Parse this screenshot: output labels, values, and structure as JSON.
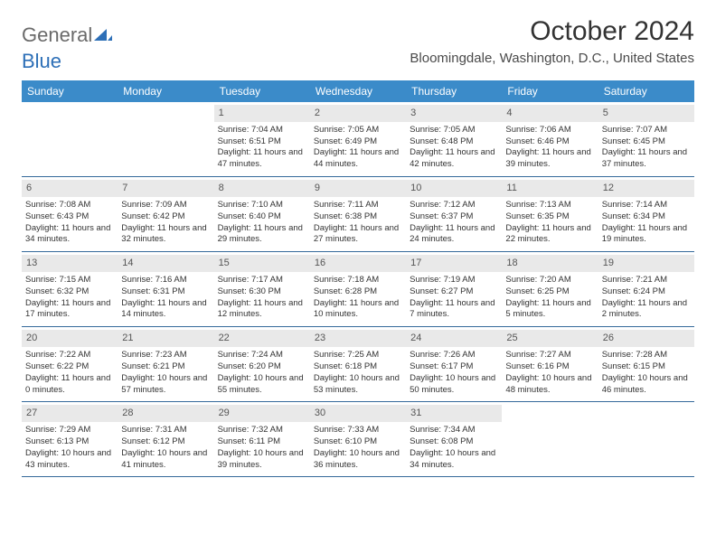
{
  "logo": {
    "word1": "General",
    "word2": "Blue"
  },
  "title": "October 2024",
  "location": "Bloomingdale, Washington, D.C., United States",
  "colors": {
    "header_bg": "#3b8bc9",
    "header_text": "#ffffff",
    "row_border": "#34699a",
    "daynum_bg": "#e9e9e9",
    "daynum_text": "#555555",
    "body_text": "#333333",
    "logo_gray": "#6a6a6a",
    "logo_blue": "#2d6fb7"
  },
  "day_names": [
    "Sunday",
    "Monday",
    "Tuesday",
    "Wednesday",
    "Thursday",
    "Friday",
    "Saturday"
  ],
  "weeks": [
    [
      {
        "day": "",
        "sunrise": "",
        "sunset": "",
        "daylight": ""
      },
      {
        "day": "",
        "sunrise": "",
        "sunset": "",
        "daylight": ""
      },
      {
        "day": "1",
        "sunrise": "Sunrise: 7:04 AM",
        "sunset": "Sunset: 6:51 PM",
        "daylight": "Daylight: 11 hours and 47 minutes."
      },
      {
        "day": "2",
        "sunrise": "Sunrise: 7:05 AM",
        "sunset": "Sunset: 6:49 PM",
        "daylight": "Daylight: 11 hours and 44 minutes."
      },
      {
        "day": "3",
        "sunrise": "Sunrise: 7:05 AM",
        "sunset": "Sunset: 6:48 PM",
        "daylight": "Daylight: 11 hours and 42 minutes."
      },
      {
        "day": "4",
        "sunrise": "Sunrise: 7:06 AM",
        "sunset": "Sunset: 6:46 PM",
        "daylight": "Daylight: 11 hours and 39 minutes."
      },
      {
        "day": "5",
        "sunrise": "Sunrise: 7:07 AM",
        "sunset": "Sunset: 6:45 PM",
        "daylight": "Daylight: 11 hours and 37 minutes."
      }
    ],
    [
      {
        "day": "6",
        "sunrise": "Sunrise: 7:08 AM",
        "sunset": "Sunset: 6:43 PM",
        "daylight": "Daylight: 11 hours and 34 minutes."
      },
      {
        "day": "7",
        "sunrise": "Sunrise: 7:09 AM",
        "sunset": "Sunset: 6:42 PM",
        "daylight": "Daylight: 11 hours and 32 minutes."
      },
      {
        "day": "8",
        "sunrise": "Sunrise: 7:10 AM",
        "sunset": "Sunset: 6:40 PM",
        "daylight": "Daylight: 11 hours and 29 minutes."
      },
      {
        "day": "9",
        "sunrise": "Sunrise: 7:11 AM",
        "sunset": "Sunset: 6:38 PM",
        "daylight": "Daylight: 11 hours and 27 minutes."
      },
      {
        "day": "10",
        "sunrise": "Sunrise: 7:12 AM",
        "sunset": "Sunset: 6:37 PM",
        "daylight": "Daylight: 11 hours and 24 minutes."
      },
      {
        "day": "11",
        "sunrise": "Sunrise: 7:13 AM",
        "sunset": "Sunset: 6:35 PM",
        "daylight": "Daylight: 11 hours and 22 minutes."
      },
      {
        "day": "12",
        "sunrise": "Sunrise: 7:14 AM",
        "sunset": "Sunset: 6:34 PM",
        "daylight": "Daylight: 11 hours and 19 minutes."
      }
    ],
    [
      {
        "day": "13",
        "sunrise": "Sunrise: 7:15 AM",
        "sunset": "Sunset: 6:32 PM",
        "daylight": "Daylight: 11 hours and 17 minutes."
      },
      {
        "day": "14",
        "sunrise": "Sunrise: 7:16 AM",
        "sunset": "Sunset: 6:31 PM",
        "daylight": "Daylight: 11 hours and 14 minutes."
      },
      {
        "day": "15",
        "sunrise": "Sunrise: 7:17 AM",
        "sunset": "Sunset: 6:30 PM",
        "daylight": "Daylight: 11 hours and 12 minutes."
      },
      {
        "day": "16",
        "sunrise": "Sunrise: 7:18 AM",
        "sunset": "Sunset: 6:28 PM",
        "daylight": "Daylight: 11 hours and 10 minutes."
      },
      {
        "day": "17",
        "sunrise": "Sunrise: 7:19 AM",
        "sunset": "Sunset: 6:27 PM",
        "daylight": "Daylight: 11 hours and 7 minutes."
      },
      {
        "day": "18",
        "sunrise": "Sunrise: 7:20 AM",
        "sunset": "Sunset: 6:25 PM",
        "daylight": "Daylight: 11 hours and 5 minutes."
      },
      {
        "day": "19",
        "sunrise": "Sunrise: 7:21 AM",
        "sunset": "Sunset: 6:24 PM",
        "daylight": "Daylight: 11 hours and 2 minutes."
      }
    ],
    [
      {
        "day": "20",
        "sunrise": "Sunrise: 7:22 AM",
        "sunset": "Sunset: 6:22 PM",
        "daylight": "Daylight: 11 hours and 0 minutes."
      },
      {
        "day": "21",
        "sunrise": "Sunrise: 7:23 AM",
        "sunset": "Sunset: 6:21 PM",
        "daylight": "Daylight: 10 hours and 57 minutes."
      },
      {
        "day": "22",
        "sunrise": "Sunrise: 7:24 AM",
        "sunset": "Sunset: 6:20 PM",
        "daylight": "Daylight: 10 hours and 55 minutes."
      },
      {
        "day": "23",
        "sunrise": "Sunrise: 7:25 AM",
        "sunset": "Sunset: 6:18 PM",
        "daylight": "Daylight: 10 hours and 53 minutes."
      },
      {
        "day": "24",
        "sunrise": "Sunrise: 7:26 AM",
        "sunset": "Sunset: 6:17 PM",
        "daylight": "Daylight: 10 hours and 50 minutes."
      },
      {
        "day": "25",
        "sunrise": "Sunrise: 7:27 AM",
        "sunset": "Sunset: 6:16 PM",
        "daylight": "Daylight: 10 hours and 48 minutes."
      },
      {
        "day": "26",
        "sunrise": "Sunrise: 7:28 AM",
        "sunset": "Sunset: 6:15 PM",
        "daylight": "Daylight: 10 hours and 46 minutes."
      }
    ],
    [
      {
        "day": "27",
        "sunrise": "Sunrise: 7:29 AM",
        "sunset": "Sunset: 6:13 PM",
        "daylight": "Daylight: 10 hours and 43 minutes."
      },
      {
        "day": "28",
        "sunrise": "Sunrise: 7:31 AM",
        "sunset": "Sunset: 6:12 PM",
        "daylight": "Daylight: 10 hours and 41 minutes."
      },
      {
        "day": "29",
        "sunrise": "Sunrise: 7:32 AM",
        "sunset": "Sunset: 6:11 PM",
        "daylight": "Daylight: 10 hours and 39 minutes."
      },
      {
        "day": "30",
        "sunrise": "Sunrise: 7:33 AM",
        "sunset": "Sunset: 6:10 PM",
        "daylight": "Daylight: 10 hours and 36 minutes."
      },
      {
        "day": "31",
        "sunrise": "Sunrise: 7:34 AM",
        "sunset": "Sunset: 6:08 PM",
        "daylight": "Daylight: 10 hours and 34 minutes."
      },
      {
        "day": "",
        "sunrise": "",
        "sunset": "",
        "daylight": ""
      },
      {
        "day": "",
        "sunrise": "",
        "sunset": "",
        "daylight": ""
      }
    ]
  ]
}
